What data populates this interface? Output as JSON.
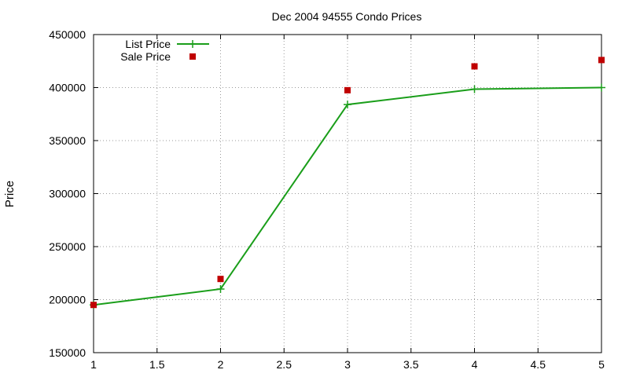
{
  "chart_data": {
    "type": "line",
    "title": "Dec 2004 94555 Condo Prices",
    "xlabel": "",
    "ylabel": "Price",
    "xlim": [
      1,
      5
    ],
    "ylim": [
      150000,
      450000
    ],
    "x_ticks": [
      "1",
      "1.5",
      "2",
      "2.5",
      "3",
      "3.5",
      "4",
      "4.5",
      "5"
    ],
    "y_ticks": [
      "150000",
      "200000",
      "250000",
      "300000",
      "350000",
      "400000",
      "450000"
    ],
    "grid": true,
    "legend_position": "top-left",
    "series": [
      {
        "name": "List Price",
        "style": "line+points",
        "marker": "plus",
        "color": "#1a9e1a",
        "x": [
          1,
          2,
          3,
          4,
          5
        ],
        "y": [
          195000,
          210000,
          384000,
          398500,
          400000
        ]
      },
      {
        "name": "Sale Price",
        "style": "points",
        "marker": "square",
        "color": "#c00000",
        "x": [
          1,
          2,
          3,
          4,
          5
        ],
        "y": [
          195000,
          219500,
          397500,
          420000,
          426000
        ]
      }
    ]
  }
}
